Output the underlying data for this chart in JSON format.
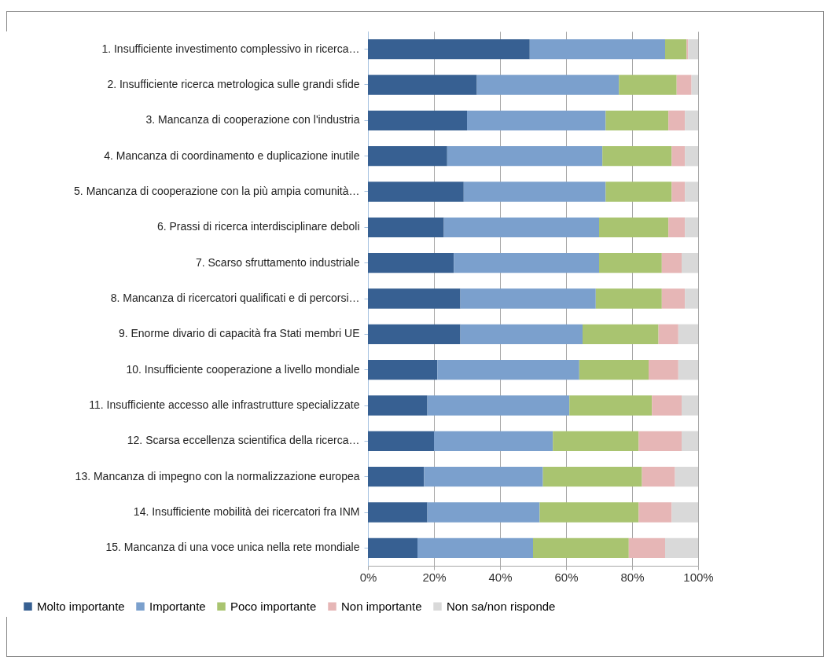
{
  "chart_data": {
    "type": "bar",
    "orientation": "horizontal",
    "stacked": true,
    "categories": [
      "1. Insufficiente investimento complessivo in ricerca…",
      "2. Insufficiente ricerca metrologica sulle grandi sfide",
      "3. Mancanza di cooperazione con l'industria",
      "4. Mancanza di coordinamento e duplicazione inutile",
      "5. Mancanza di cooperazione con la più ampia comunità…",
      "6. Prassi di ricerca interdisciplinare deboli",
      "7. Scarso sfruttamento industriale",
      "8. Mancanza di ricercatori qualificati e di percorsi…",
      "9. Enorme divario di capacità fra Stati membri UE",
      "10. Insufficiente cooperazione a livello mondiale",
      "11. Insufficiente accesso alle infrastrutture specializzate",
      "12. Scarsa eccellenza scientifica della ricerca…",
      "13. Mancanza di impegno con la normalizzazione europea",
      "14. Insufficiente mobilità dei ricercatori fra INM",
      "15. Mancanza di una voce unica nella rete mondiale"
    ],
    "series": [
      {
        "name": "Molto importante",
        "color": "#376092",
        "values": [
          49,
          33,
          30,
          24,
          29,
          23,
          26,
          28,
          28,
          21,
          18,
          20,
          17,
          18,
          15
        ]
      },
      {
        "name": "Importante",
        "color": "#7ba0cd",
        "values": [
          41,
          43,
          42,
          47,
          43,
          47,
          44,
          41,
          37,
          43,
          43,
          36,
          36,
          34,
          35
        ]
      },
      {
        "name": "Poco importante",
        "color": "#a9c470",
        "values": [
          6.5,
          17.5,
          19,
          21,
          20,
          21,
          19,
          20,
          23,
          21,
          25,
          26,
          30,
          30,
          29
        ]
      },
      {
        "name": "Non importante",
        "color": "#e6b6b6",
        "values": [
          0.5,
          4.5,
          5,
          4,
          4,
          5,
          6,
          7,
          6,
          9,
          9,
          13,
          10,
          10,
          11
        ]
      },
      {
        "name": "Non sa/non risponde",
        "color": "#d9d9d9",
        "values": [
          3,
          2,
          4,
          4,
          4,
          4,
          5,
          4,
          6,
          6,
          5,
          5,
          7,
          8,
          10
        ]
      }
    ],
    "xlim": [
      0,
      100
    ],
    "xticks": [
      {
        "value": 0,
        "label": "0%"
      },
      {
        "value": 20,
        "label": "20%"
      },
      {
        "value": 40,
        "label": "40%"
      },
      {
        "value": 60,
        "label": "60%"
      },
      {
        "value": 80,
        "label": "80%"
      },
      {
        "value": 100,
        "label": "100%"
      }
    ],
    "grid": "x",
    "legend": "bottom"
  }
}
